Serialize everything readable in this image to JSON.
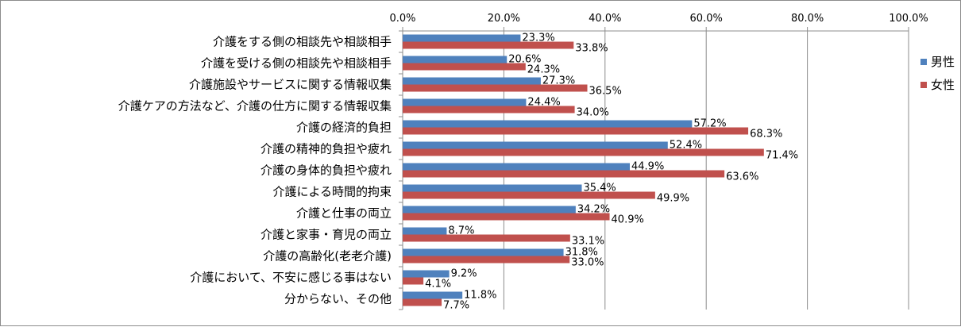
{
  "chart_data": {
    "type": "bar",
    "orientation": "horizontal",
    "categories": [
      "介護をする側の相談先や相談相手",
      "介護を受ける側の相談先や相談相手",
      "介護施設やサービスに関する情報収集",
      "介護ケアの方法など、介護の仕方に関する情報収集",
      "介護の経済的負担",
      "介護の精神的負担や疲れ",
      "介護の身体的負担や疲れ",
      "介護による時間的拘束",
      "介護と仕事の両立",
      "介護と家事・育児の両立",
      "介護の高齢化(老老介護)",
      "介護において、不安に感じる事はない",
      "分からない、その他"
    ],
    "series": [
      {
        "name": "男性",
        "color": "#4f81bd",
        "values": [
          23.3,
          20.6,
          27.3,
          24.4,
          57.2,
          52.4,
          44.9,
          35.4,
          34.2,
          8.7,
          31.8,
          9.2,
          11.8
        ],
        "labels": [
          "23.3%",
          "20.6%",
          "27.3%",
          "24.4%",
          "57.2%",
          "52.4%",
          "44.9%",
          "35.4%",
          "34.2%",
          "8.7%",
          "31.8%",
          "9.2%",
          "11.8%"
        ]
      },
      {
        "name": "女性",
        "color": "#c0504d",
        "values": [
          33.8,
          24.3,
          36.5,
          34.0,
          68.3,
          71.4,
          63.6,
          49.9,
          40.9,
          33.1,
          33.0,
          4.1,
          7.7
        ],
        "labels": [
          "33.8%",
          "24.3%",
          "36.5%",
          "34.0%",
          "68.3%",
          "71.4%",
          "63.6%",
          "49.9%",
          "40.9%",
          "33.1%",
          "33.0%",
          "4.1%",
          "7.7%"
        ]
      }
    ],
    "xlim": [
      0,
      100
    ],
    "ticks": [
      "0.0%",
      "20.0%",
      "40.0%",
      "60.0%",
      "80.0%",
      "100.0%"
    ],
    "tick_values": [
      0,
      20,
      40,
      60,
      80,
      100
    ],
    "grid": true,
    "legend_position": "right",
    "axis_position": "top",
    "title": "",
    "xlabel": "",
    "ylabel": ""
  }
}
